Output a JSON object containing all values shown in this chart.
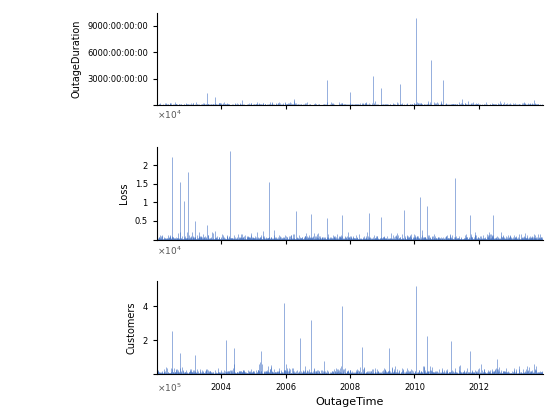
{
  "title": "",
  "xlabel": "OutageTime",
  "subplots": [
    {
      "ylabel": "OutageDuration",
      "yticks": [
        0,
        3000,
        6000,
        9000
      ],
      "yticklabels": [
        "",
        "3000:00:00:00",
        "6000:00:00:00",
        "9000:00:00:00"
      ],
      "ymax": 10500,
      "scale_label": "x10^4"
    },
    {
      "ylabel": "Loss",
      "yticks": [
        0,
        0.5,
        1.0,
        1.5,
        2.0
      ],
      "yticklabels": [
        "",
        "0.5",
        "1",
        "1.5",
        "2"
      ],
      "ymax": 2.5,
      "scale_label": "x10^4"
    },
    {
      "ylabel": "Customers",
      "yticks": [
        0,
        2,
        4
      ],
      "yticklabels": [
        "",
        "2",
        "4"
      ],
      "ymax": 5.5,
      "scale_label": "x10^5"
    }
  ],
  "line_color": "#4472C4",
  "background_color": "#ffffff",
  "year_start": 2002.0,
  "year_end": 2014.0,
  "xticks": [
    2004,
    2006,
    2008,
    2010,
    2012
  ],
  "n_points": 1500,
  "seed": 42
}
